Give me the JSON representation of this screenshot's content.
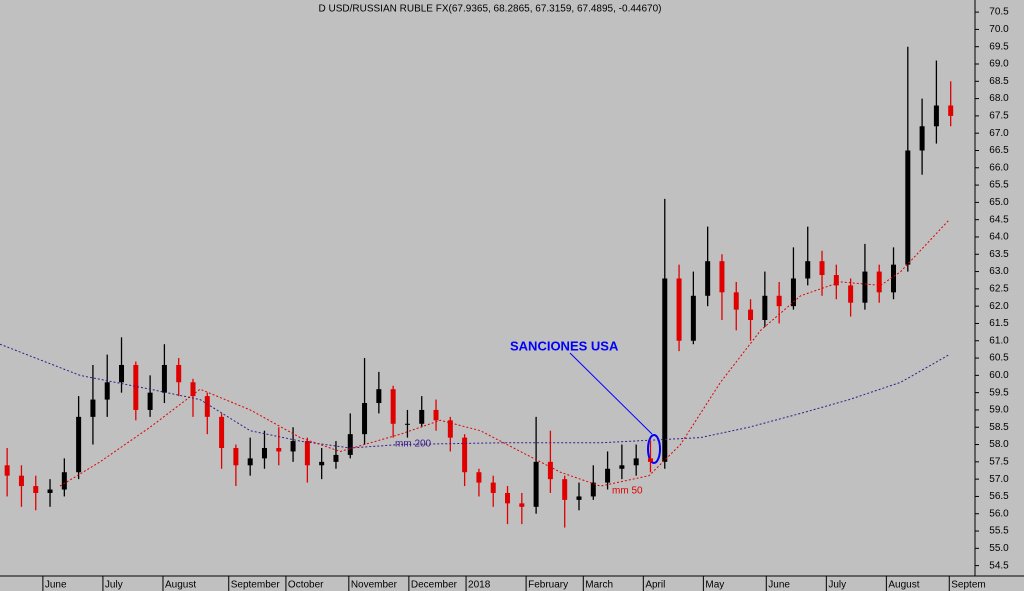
{
  "chart_data": {
    "type": "candlestick",
    "title": "D USD/RUSSIAN RUBLE FX(67.9365, 68.2865, 67.3159, 67.4895, -0.44670)",
    "xlim": [
      0,
      341
    ],
    "xticks": [
      {
        "value": 15,
        "label": "June"
      },
      {
        "value": 36,
        "label": "July"
      },
      {
        "value": 57,
        "label": "August"
      },
      {
        "value": 80,
        "label": "September"
      },
      {
        "value": 100,
        "label": "October"
      },
      {
        "value": 122,
        "label": "November"
      },
      {
        "value": 143,
        "label": "December"
      },
      {
        "value": 163,
        "label": "2018"
      },
      {
        "value": 184,
        "label": "February"
      },
      {
        "value": 204,
        "label": "March"
      },
      {
        "value": 225,
        "label": "April"
      },
      {
        "value": 246,
        "label": "May"
      },
      {
        "value": 268,
        "label": "June"
      },
      {
        "value": 289,
        "label": "July"
      },
      {
        "value": 310,
        "label": "August"
      },
      {
        "value": 332,
        "label": "Septem"
      }
    ],
    "ylim": [
      54.2,
      70.85
    ],
    "yticks": [
      {
        "value": 70.5,
        "label": "70.5"
      },
      {
        "value": 70,
        "label": "70.0"
      },
      69.5,
      {
        "value": 69,
        "label": "69.0"
      },
      68.5,
      {
        "value": 68,
        "label": "68.0"
      },
      67.5,
      {
        "value": 67,
        "label": "67.0"
      },
      66.5,
      {
        "value": 66,
        "label": "66.0"
      },
      65.5,
      {
        "value": 65,
        "label": "65.0"
      },
      64.5,
      {
        "value": 64,
        "label": "64.0"
      },
      63.5,
      {
        "value": 63,
        "label": "63.0"
      },
      62.5,
      {
        "value": 62,
        "label": "62.0"
      },
      61.5,
      {
        "value": 61,
        "label": "61.0"
      },
      60.5,
      {
        "value": 60,
        "label": "60.0"
      },
      59.5,
      {
        "value": 59,
        "label": "59.0"
      },
      58.5,
      {
        "value": 58,
        "label": "58.0"
      },
      57.5,
      {
        "value": 57,
        "label": "57.0"
      },
      56.5,
      {
        "value": 56,
        "label": "56.0"
      },
      55.5,
      {
        "value": 55,
        "label": "55.0"
      },
      54.5
    ],
    "up_color": "#000000",
    "down_color": "#e00000",
    "candles": {
      "x": [
        2.5,
        7.5,
        12.5,
        17.5,
        22.5,
        27.5,
        32.5,
        37.5,
        42.5,
        47.5,
        52.5,
        57.5,
        62.5,
        67.5,
        72.5,
        77.5,
        82.5,
        87.5,
        92.5,
        97.5,
        102.5,
        107.5,
        112.5,
        117.5,
        122.5,
        127.5,
        132.5,
        137.5,
        142.5,
        147.5,
        152.5,
        157.5,
        162.5,
        167.5,
        172.5,
        177.5,
        182.5,
        187.5,
        192.5,
        197.5,
        202.5,
        207.5,
        212.5,
        217.5,
        222.5,
        227.5,
        232.5,
        237.5,
        242.5,
        247.5,
        252.5,
        257.5,
        262.5,
        267.5,
        272.5,
        277.5,
        282.5,
        287.5,
        292.5,
        297.5,
        302.5,
        307.5,
        312.5,
        317.5,
        322.5,
        327.5,
        332.5
      ],
      "open": [
        57.4,
        57.1,
        56.8,
        56.6,
        56.7,
        57.2,
        58.8,
        59.3,
        59.8,
        60.3,
        59.0,
        59.5,
        60.3,
        59.8,
        59.4,
        58.8,
        57.9,
        57.4,
        57.6,
        57.9,
        57.8,
        58.1,
        57.4,
        57.5,
        57.7,
        58.3,
        59.2,
        59.6,
        58.6,
        58.6,
        59.0,
        58.7,
        58.2,
        57.2,
        56.9,
        56.6,
        56.3,
        56.2,
        57.5,
        57.0,
        56.4,
        56.5,
        56.9,
        57.3,
        57.4,
        57.6,
        57.5,
        62.8,
        61.0,
        62.3,
        63.3,
        62.4,
        61.9,
        61.6,
        62.3,
        62.0,
        62.8,
        63.3,
        62.9,
        62.6,
        62.1,
        63.0,
        62.4,
        63.2,
        66.5,
        67.2,
        67.8
      ],
      "high": [
        57.9,
        57.4,
        57.1,
        57.0,
        57.6,
        59.4,
        60.3,
        60.6,
        61.1,
        60.4,
        60.0,
        60.9,
        60.5,
        59.9,
        59.5,
        58.9,
        58.0,
        58.2,
        58.4,
        58.5,
        58.5,
        58.2,
        57.9,
        58.1,
        58.9,
        60.5,
        60.1,
        59.7,
        59.0,
        59.4,
        59.3,
        58.8,
        58.3,
        57.3,
        57.1,
        56.8,
        56.6,
        58.8,
        58.4,
        57.1,
        56.9,
        57.4,
        57.8,
        58.0,
        58.0,
        58.1,
        65.1,
        63.2,
        63.0,
        64.3,
        63.5,
        62.7,
        62.2,
        63.0,
        62.7,
        63.7,
        64.3,
        63.6,
        63.2,
        62.8,
        63.8,
        63.2,
        63.7,
        69.5,
        68.0,
        69.1,
        68.5
      ],
      "low": [
        56.5,
        56.2,
        56.1,
        56.2,
        56.5,
        57.0,
        58.0,
        58.8,
        59.5,
        58.7,
        58.8,
        59.2,
        59.4,
        58.8,
        58.3,
        57.3,
        56.8,
        57.1,
        57.3,
        57.4,
        57.5,
        56.9,
        57.0,
        57.3,
        57.6,
        58.0,
        58.9,
        58.2,
        58.2,
        58.5,
        58.4,
        57.8,
        56.8,
        56.5,
        56.2,
        55.7,
        55.7,
        56.0,
        56.6,
        55.6,
        56.1,
        56.4,
        56.7,
        57.0,
        57.1,
        57.2,
        57.3,
        60.7,
        60.9,
        62.0,
        61.6,
        61.3,
        61.0,
        61.4,
        61.5,
        61.9,
        62.6,
        62.3,
        62.2,
        61.7,
        61.9,
        62.1,
        62.2,
        63.0,
        65.8,
        66.7,
        67.2
      ],
      "close": [
        57.1,
        56.8,
        56.6,
        56.7,
        57.2,
        58.8,
        59.3,
        59.8,
        60.3,
        59.0,
        59.5,
        60.3,
        59.8,
        59.4,
        58.8,
        57.9,
        57.4,
        57.6,
        57.9,
        57.8,
        58.1,
        57.4,
        57.5,
        57.7,
        58.3,
        59.2,
        59.6,
        58.6,
        58.6,
        59.0,
        58.7,
        58.2,
        57.2,
        56.9,
        56.6,
        56.3,
        56.2,
        57.5,
        57.0,
        56.4,
        56.5,
        56.9,
        57.3,
        57.4,
        57.6,
        57.5,
        62.8,
        61.0,
        62.3,
        63.3,
        62.4,
        61.9,
        61.6,
        62.3,
        62.0,
        62.8,
        63.3,
        62.9,
        62.6,
        62.1,
        63.0,
        62.4,
        63.2,
        66.5,
        67.2,
        67.8,
        67.5
      ]
    },
    "moving_averages": [
      {
        "name": "mm 200",
        "color": "#3a1a8a",
        "x": [
          0,
          28,
          52.5,
          70,
          87.5,
          105,
          122.5,
          140,
          175,
          210,
          245,
          262,
          280,
          297,
          315,
          332
        ],
        "values": [
          60.9,
          60.0,
          59.6,
          59.3,
          58.4,
          58.1,
          57.9,
          58.0,
          58.05,
          58.05,
          58.2,
          58.5,
          58.9,
          59.3,
          59.8,
          60.6
        ]
      },
      {
        "name": "mm 50",
        "color": "#e00000",
        "x": [
          21,
          35,
          52.5,
          70,
          87.5,
          105,
          119,
          140,
          154,
          168,
          182,
          196,
          210,
          227,
          238,
          252,
          266,
          280,
          294,
          308,
          315,
          332
        ],
        "values": [
          56.8,
          57.5,
          58.5,
          59.6,
          59.0,
          58.2,
          57.8,
          58.3,
          58.7,
          58.4,
          57.8,
          57.2,
          56.8,
          57.1,
          58.0,
          59.8,
          61.3,
          62.3,
          62.7,
          62.6,
          63.0,
          64.5
        ]
      }
    ],
    "annotation": "SANCIONES USA"
  }
}
